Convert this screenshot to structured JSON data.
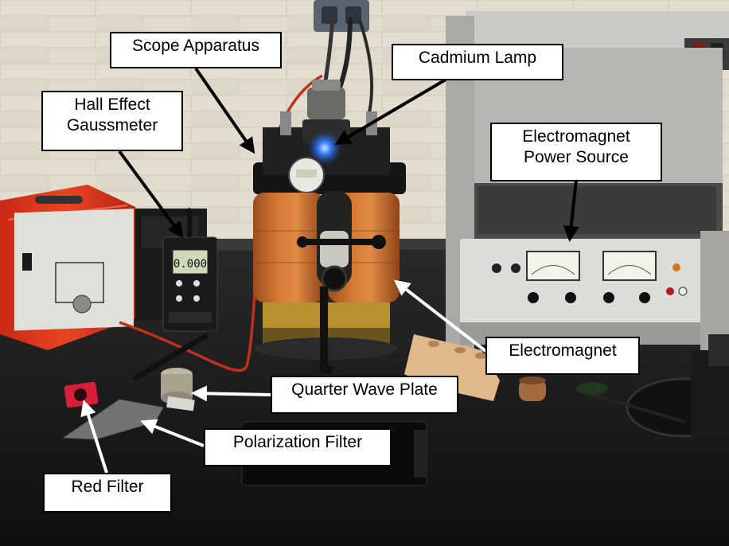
{
  "labels": {
    "scope_apparatus": "Scope Apparatus",
    "cadmium_lamp": "Cadmium Lamp",
    "hall_effect_line1": "Hall Effect",
    "hall_effect_line2": "Gaussmeter",
    "power_source_line1": "Electromagnet",
    "power_source_line2": "Power Source",
    "electromagnet": "Electromagnet",
    "quarter_wave_plate": "Quarter Wave Plate",
    "polarization_filter": "Polarization Filter",
    "red_filter": "Red Filter"
  },
  "gaussmeter_readout": "0.000",
  "colors": {
    "wall": "#d9d3c6",
    "bench": "#141414",
    "coil_copper": "#c8692c",
    "red_case": "#e23a1e",
    "lamp_glow": "#1e6bff",
    "panel": "#dcdcd8",
    "label_bg": "#ffffff",
    "label_border": "#000000",
    "arrow_black": "#000000",
    "arrow_white": "#ffffff"
  }
}
